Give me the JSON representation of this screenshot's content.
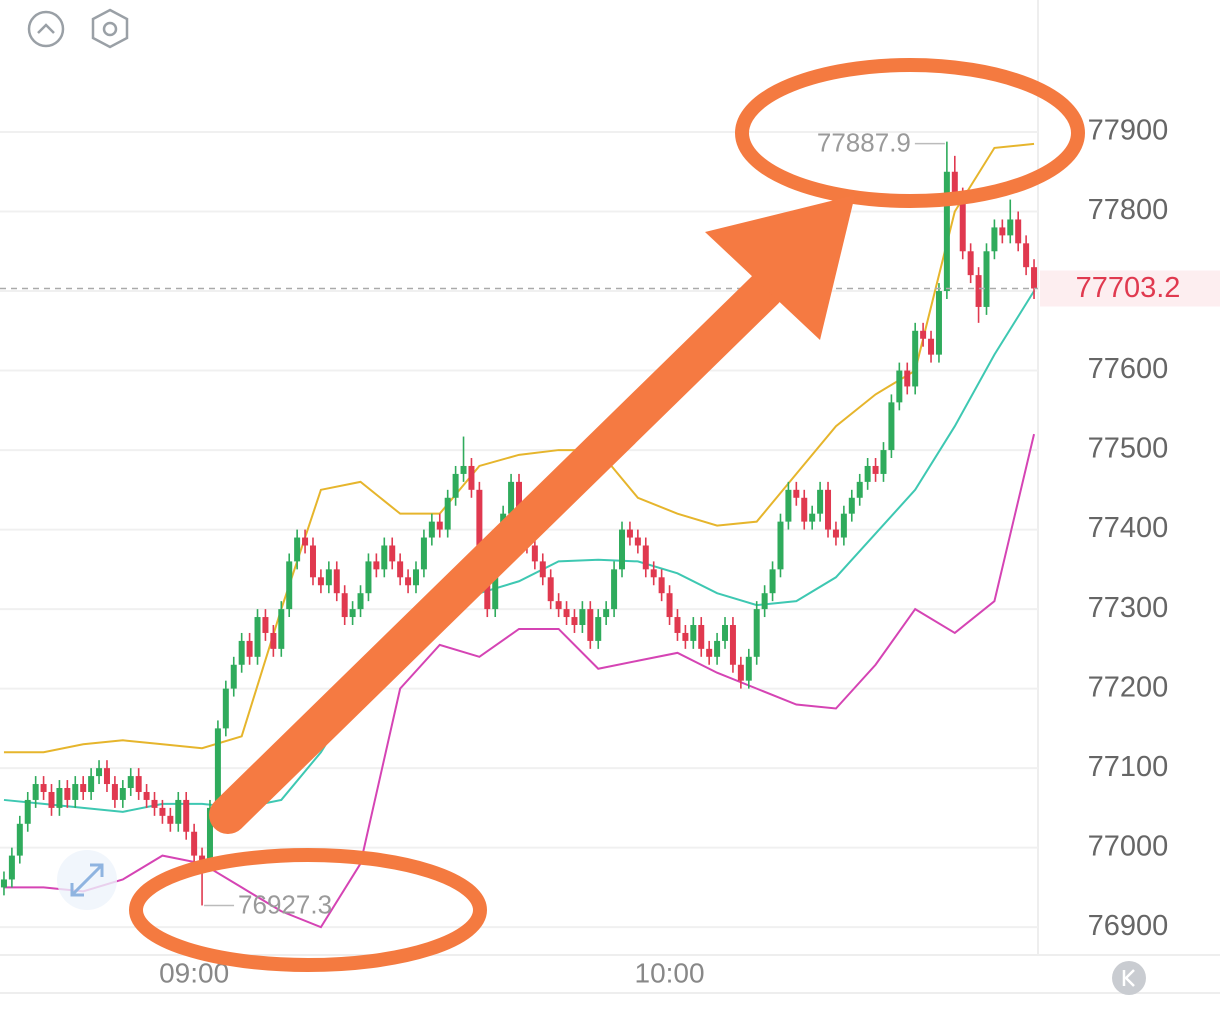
{
  "chart_data": {
    "type": "candlestick",
    "categories": [
      null,
      null,
      null,
      null,
      null,
      null,
      null,
      null,
      null,
      null,
      null,
      null,
      null,
      null,
      null,
      null,
      null,
      null,
      null,
      null,
      null,
      null,
      null,
      null,
      "09:00",
      null,
      null,
      null,
      null,
      null,
      null,
      null,
      null,
      null,
      null,
      null,
      null,
      null,
      null,
      null,
      null,
      null,
      null,
      null,
      null,
      null,
      null,
      null,
      null,
      null,
      null,
      null,
      null,
      null,
      null,
      null,
      null,
      null,
      null,
      null,
      null,
      null,
      null,
      null,
      null,
      null,
      null,
      null,
      null,
      null,
      null,
      null,
      null,
      null,
      null,
      null,
      null,
      null,
      null,
      null,
      null,
      null,
      null,
      null,
      "10:00",
      null,
      null,
      null,
      null,
      null,
      null,
      null,
      null,
      null,
      null,
      null,
      null,
      null,
      null,
      null,
      null,
      null,
      null,
      null,
      null,
      null,
      null,
      null,
      null,
      null,
      null,
      null,
      null,
      null,
      null,
      null,
      null,
      null,
      null,
      null,
      null,
      null,
      null,
      null,
      null,
      null,
      null,
      null,
      null,
      null,
      null
    ],
    "open": [
      76950,
      76960,
      76990,
      77030,
      77060,
      77080,
      77070,
      77050,
      77075,
      77060,
      77080,
      77070,
      77090,
      77100,
      77080,
      77060,
      77075,
      77090,
      77070,
      77060,
      77050,
      77040,
      77030,
      77060,
      77020,
      76990,
      76980,
      77050,
      77150,
      77200,
      77230,
      77260,
      77240,
      77290,
      77270,
      77250,
      77300,
      77360,
      77390,
      77380,
      77340,
      77330,
      77350,
      77320,
      77290,
      77300,
      77320,
      77360,
      77350,
      77380,
      77360,
      77340,
      77330,
      77350,
      77390,
      77410,
      77400,
      77440,
      77470,
      77480,
      77450,
      77360,
      77300,
      77370,
      77420,
      77460,
      77400,
      77380,
      77360,
      77340,
      77310,
      77300,
      77290,
      77280,
      77300,
      77260,
      77290,
      77300,
      77350,
      77400,
      77390,
      77380,
      77350,
      77340,
      77320,
      77290,
      77270,
      77260,
      77280,
      77250,
      77240,
      77260,
      77280,
      77230,
      77210,
      77240,
      77300,
      77320,
      77350,
      77410,
      77450,
      77440,
      77410,
      77420,
      77450,
      77400,
      77390,
      77420,
      77440,
      77460,
      77480,
      77470,
      77500,
      77560,
      77600,
      77580,
      77650,
      77640,
      77620,
      77700,
      77850,
      77820,
      77750,
      77720,
      77680,
      77750,
      77780,
      77770,
      77790,
      77760,
      77730
    ],
    "high": [
      76970,
      77000,
      77040,
      77070,
      77090,
      77090,
      77080,
      77085,
      77085,
      77090,
      77090,
      77100,
      77110,
      77110,
      77090,
      77085,
      77100,
      77100,
      77080,
      77070,
      77060,
      77050,
      77070,
      77070,
      77030,
      77000,
      77060,
      77160,
      77210,
      77240,
      77270,
      77270,
      77300,
      77300,
      77280,
      77310,
      77370,
      77400,
      77400,
      77390,
      77350,
      77360,
      77360,
      77330,
      77310,
      77330,
      77370,
      77370,
      77390,
      77390,
      77370,
      77350,
      77360,
      77400,
      77420,
      77420,
      77450,
      77480,
      77517,
      77490,
      77460,
      77370,
      77380,
      77430,
      77470,
      77470,
      77410,
      77390,
      77370,
      77350,
      77320,
      77310,
      77300,
      77310,
      77310,
      77300,
      77310,
      77360,
      77410,
      77410,
      77400,
      77390,
      77360,
      77350,
      77330,
      77300,
      77280,
      77290,
      77290,
      77260,
      77270,
      77290,
      77290,
      77240,
      77250,
      77310,
      77330,
      77360,
      77420,
      77460,
      77460,
      77450,
      77430,
      77460,
      77460,
      77410,
      77430,
      77450,
      77470,
      77490,
      77490,
      77510,
      77570,
      77610,
      77610,
      77660,
      77660,
      77650,
      77710,
      77887.9,
      77870,
      77830,
      77760,
      77730,
      77760,
      77790,
      77790,
      77815,
      77800,
      77770,
      77740
    ],
    "low": [
      76940,
      76950,
      76980,
      77020,
      77050,
      77060,
      77040,
      77040,
      77050,
      77050,
      77060,
      77060,
      77080,
      77070,
      77050,
      77050,
      77065,
      77060,
      77050,
      77040,
      77030,
      77020,
      77020,
      77010,
      76980,
      76927.3,
      76970,
      77040,
      77140,
      77190,
      77220,
      77230,
      77230,
      77260,
      77240,
      77240,
      77290,
      77350,
      77370,
      77330,
      77320,
      77320,
      77310,
      77280,
      77280,
      77290,
      77310,
      77340,
      77340,
      77350,
      77330,
      77320,
      77320,
      77340,
      77380,
      77390,
      77390,
      77430,
      77460,
      77440,
      77350,
      77290,
      77290,
      77360,
      77410,
      77390,
      77370,
      77350,
      77330,
      77300,
      77290,
      77280,
      77270,
      77270,
      77250,
      77250,
      77280,
      77290,
      77340,
      77380,
      77370,
      77340,
      77330,
      77310,
      77280,
      77260,
      77250,
      77250,
      77240,
      77230,
      77230,
      77250,
      77220,
      77200,
      77200,
      77230,
      77290,
      77310,
      77340,
      77400,
      77430,
      77400,
      77400,
      77410,
      77390,
      77380,
      77380,
      77410,
      77430,
      77450,
      77460,
      77460,
      77490,
      77550,
      77570,
      77570,
      77630,
      77610,
      77610,
      77690,
      77810,
      77740,
      77710,
      77660,
      77670,
      77740,
      77760,
      77760,
      77750,
      77720,
      77690
    ],
    "close": [
      76960,
      76990,
      77030,
      77060,
      77080,
      77070,
      77050,
      77075,
      77060,
      77080,
      77070,
      77090,
      77100,
      77080,
      77060,
      77075,
      77090,
      77070,
      77060,
      77050,
      77040,
      77030,
      77060,
      77020,
      76990,
      76980,
      77050,
      77150,
      77200,
      77230,
      77260,
      77240,
      77290,
      77270,
      77250,
      77300,
      77360,
      77390,
      77380,
      77340,
      77330,
      77350,
      77320,
      77290,
      77300,
      77320,
      77360,
      77350,
      77380,
      77360,
      77340,
      77330,
      77350,
      77390,
      77410,
      77400,
      77440,
      77470,
      77480,
      77450,
      77360,
      77300,
      77370,
      77420,
      77460,
      77400,
      77380,
      77360,
      77340,
      77310,
      77300,
      77290,
      77280,
      77300,
      77260,
      77290,
      77300,
      77350,
      77400,
      77390,
      77380,
      77350,
      77340,
      77320,
      77290,
      77270,
      77260,
      77280,
      77250,
      77240,
      77260,
      77280,
      77230,
      77210,
      77240,
      77300,
      77320,
      77350,
      77410,
      77450,
      77440,
      77410,
      77420,
      77450,
      77400,
      77390,
      77420,
      77440,
      77460,
      77480,
      77470,
      77500,
      77560,
      77600,
      77580,
      77650,
      77640,
      77620,
      77700,
      77850,
      77820,
      77750,
      77720,
      77680,
      77750,
      77780,
      77770,
      77790,
      77760,
      77730,
      77703.2
    ],
    "up_color": "#2fab5c",
    "down_color": "#e0394f",
    "lines": [
      {
        "color": "#e6b52c",
        "x": [
          0,
          5,
          10,
          15,
          20,
          25,
          30,
          35,
          40,
          45,
          50,
          55,
          60,
          65,
          70,
          75,
          80,
          85,
          90,
          95,
          100,
          105,
          110,
          115,
          120,
          125,
          130
        ],
        "values": [
          77120,
          77120,
          77130,
          77135,
          77130,
          77125,
          77140,
          77300,
          77450,
          77460,
          77420,
          77420,
          77480,
          77494,
          77500,
          77500,
          77440,
          77420,
          77405,
          77410,
          77470,
          77530,
          77570,
          77600,
          77800,
          77880,
          77885
        ]
      },
      {
        "color": "#3ec8b2",
        "x": [
          0,
          5,
          10,
          15,
          20,
          25,
          30,
          35,
          40,
          45,
          50,
          55,
          60,
          65,
          70,
          75,
          80,
          85,
          90,
          95,
          100,
          105,
          110,
          115,
          120,
          125,
          130
        ],
        "values": [
          77060,
          77055,
          77050,
          77045,
          77055,
          77055,
          77050,
          77060,
          77120,
          77200,
          77260,
          77295,
          77320,
          77335,
          77360,
          77362,
          77360,
          77345,
          77320,
          77305,
          77310,
          77340,
          77395,
          77450,
          77530,
          77620,
          77700
        ]
      },
      {
        "color": "#d544b4",
        "x": [
          0,
          5,
          10,
          15,
          20,
          25,
          30,
          35,
          40,
          45,
          50,
          55,
          60,
          65,
          70,
          75,
          80,
          85,
          90,
          95,
          100,
          105,
          110,
          115,
          120,
          125,
          130
        ],
        "values": [
          76950,
          76950,
          76945,
          76960,
          76990,
          76980,
          76950,
          76920,
          76900,
          76980,
          77200,
          77255,
          77240,
          77275,
          77275,
          77225,
          77235,
          77245,
          77220,
          77200,
          77180,
          77175,
          77230,
          77300,
          77270,
          77310,
          77520
        ]
      }
    ],
    "ylim": [
      76865,
      78066
    ],
    "yticks": [
      76900,
      77000,
      77100,
      77200,
      77300,
      77400,
      77500,
      77600,
      77700,
      77800,
      77900
    ],
    "grid": true
  }
}
